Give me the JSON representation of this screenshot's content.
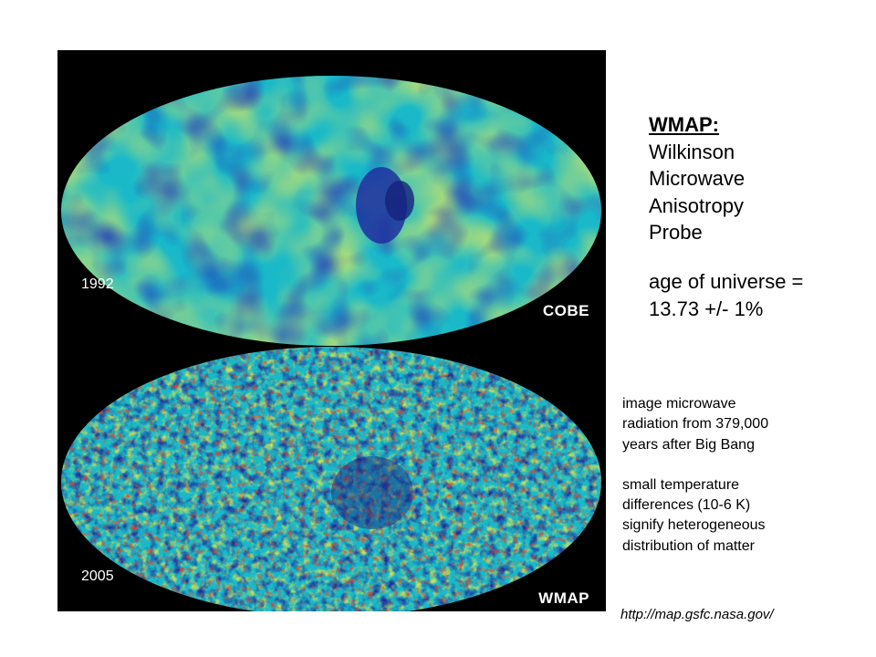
{
  "maps": [
    {
      "year": "1992",
      "label": "COBE"
    },
    {
      "year": "2005",
      "label": "WMAP"
    }
  ],
  "heading": "WMAP:",
  "expansion": [
    "Wilkinson",
    "Microwave",
    "Anisotropy",
    "Probe"
  ],
  "age": [
    "age of universe =",
    "13.73 +/- 1%"
  ],
  "notes": [
    [
      "image microwave",
      "radiation from 379,000",
      "years after Big Bang"
    ],
    [
      "small temperature",
      "differences (10-6 K)",
      "signify heterogeneous",
      "distribution of matter"
    ]
  ],
  "source_url": "http://map.gsfc.nasa.gov/",
  "colors": {
    "panel_bg": "#000000",
    "cmb_base": "#19b9c9",
    "cmb_cold": "#1d2f9a",
    "cmb_warm": "#dfe24a",
    "cmb_hot": "#e0472a"
  }
}
